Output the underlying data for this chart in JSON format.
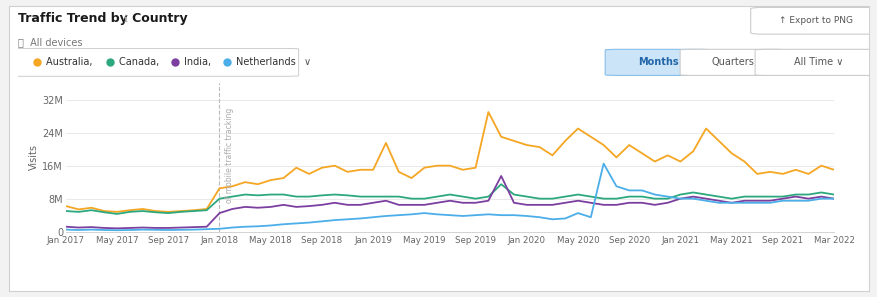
{
  "title": "Traffic Trend by Country",
  "subtitle": "All devices",
  "ylabel": "Visits",
  "watermark_text": "of mobile traffic tracking",
  "legend": [
    "Australia",
    "Canada",
    "India",
    "Netherlands"
  ],
  "legend_colors": [
    "#f5a623",
    "#2ca87f",
    "#7b3fa0",
    "#4baee8"
  ],
  "ytick_labels": [
    "0",
    "8M",
    "16M",
    "24M",
    "32M"
  ],
  "yticks": [
    0,
    8000000,
    16000000,
    24000000,
    32000000
  ],
  "xtick_labels": [
    "Jan 2017",
    "May 2017",
    "Sep 2017",
    "Jan 2018",
    "May 2018",
    "Sep 2018",
    "Jan 2019",
    "May 2019",
    "Sep 2019",
    "Jan 2020",
    "May 2020",
    "Sep 2020",
    "Jan 2021",
    "May 2021",
    "Sep 2021",
    "Mar 2022"
  ],
  "australia": [
    6200000,
    5400000,
    5800000,
    5000000,
    4800000,
    5200000,
    5500000,
    5000000,
    4800000,
    5000000,
    5200000,
    5500000,
    10500000,
    11000000,
    12000000,
    11500000,
    12500000,
    13000000,
    15500000,
    14000000,
    15500000,
    16000000,
    14500000,
    15000000,
    15000000,
    21500000,
    14500000,
    13000000,
    15500000,
    16000000,
    16000000,
    15000000,
    15500000,
    29000000,
    23000000,
    22000000,
    21000000,
    20500000,
    18500000,
    22000000,
    25000000,
    23000000,
    21000000,
    18000000,
    21000000,
    19000000,
    17000000,
    18500000,
    17000000,
    19500000,
    25000000,
    22000000,
    19000000,
    17000000,
    14000000,
    14500000,
    14000000,
    15000000,
    14000000,
    16000000,
    15000000
  ],
  "canada": [
    5000000,
    4800000,
    5200000,
    4700000,
    4300000,
    4800000,
    5000000,
    4700000,
    4500000,
    4800000,
    5000000,
    5200000,
    8000000,
    8500000,
    9000000,
    8800000,
    9000000,
    9000000,
    8500000,
    8500000,
    8800000,
    9000000,
    8800000,
    8500000,
    8500000,
    8500000,
    8500000,
    8000000,
    8000000,
    8500000,
    9000000,
    8500000,
    8000000,
    8500000,
    11500000,
    9000000,
    8500000,
    8000000,
    8000000,
    8500000,
    9000000,
    8500000,
    8000000,
    8000000,
    8500000,
    8500000,
    8000000,
    8000000,
    9000000,
    9500000,
    9000000,
    8500000,
    8000000,
    8500000,
    8500000,
    8500000,
    8500000,
    9000000,
    9000000,
    9500000,
    9000000
  ],
  "india": [
    1200000,
    1000000,
    1100000,
    900000,
    800000,
    900000,
    1000000,
    900000,
    900000,
    1000000,
    1100000,
    1200000,
    4500000,
    5500000,
    6000000,
    5800000,
    6000000,
    6500000,
    6000000,
    6200000,
    6500000,
    7000000,
    6500000,
    6500000,
    7000000,
    7500000,
    6500000,
    6500000,
    6500000,
    7000000,
    7500000,
    7000000,
    7000000,
    7500000,
    13500000,
    7000000,
    6500000,
    6500000,
    6500000,
    7000000,
    7500000,
    7000000,
    6500000,
    6500000,
    7000000,
    7000000,
    6500000,
    7000000,
    8000000,
    8500000,
    8000000,
    7500000,
    7000000,
    7500000,
    7500000,
    7500000,
    8000000,
    8500000,
    8000000,
    8500000,
    8000000
  ],
  "netherlands": [
    500000,
    400000,
    500000,
    400000,
    350000,
    400000,
    500000,
    450000,
    400000,
    450000,
    500000,
    600000,
    700000,
    1000000,
    1200000,
    1300000,
    1500000,
    1800000,
    2000000,
    2200000,
    2500000,
    2800000,
    3000000,
    3200000,
    3500000,
    3800000,
    4000000,
    4200000,
    4500000,
    4200000,
    4000000,
    3800000,
    4000000,
    4200000,
    4000000,
    4000000,
    3800000,
    3500000,
    3000000,
    3200000,
    4500000,
    3500000,
    16500000,
    11000000,
    10000000,
    10000000,
    9000000,
    8500000,
    8000000,
    8000000,
    7500000,
    7000000,
    7000000,
    7000000,
    7000000,
    7000000,
    7500000,
    7500000,
    7500000,
    8000000,
    8000000
  ],
  "n_points": 61,
  "jan2018_idx": 12
}
